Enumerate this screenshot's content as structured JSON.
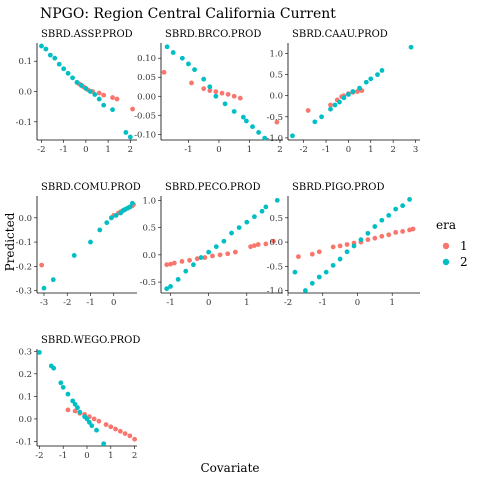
{
  "title": "NPGO: Region Central California Current",
  "xlabel": "Covariate",
  "ylabel": "Predicted",
  "legend": {
    "title": "era",
    "entries": [
      {
        "label": "1",
        "color": "#F8766D"
      },
      {
        "label": "2",
        "color": "#00BFC4"
      }
    ],
    "position": "right"
  },
  "chart_data": [
    {
      "type": "scatter",
      "title": "SBRD.ASSP.PROD",
      "xlim": [
        -2.2,
        2.3
      ],
      "ylim": [
        -0.16,
        0.16
      ],
      "xticks": [
        -2,
        -1,
        0,
        1,
        2
      ],
      "yticks": [
        0.1,
        0.0,
        -0.1
      ],
      "series": [
        {
          "name": "1",
          "color": "#F8766D",
          "points": [
            [
              -0.4,
              0.03
            ],
            [
              -0.3,
              0.025
            ],
            [
              -0.2,
              0.02
            ],
            [
              -0.1,
              0.015
            ],
            [
              0.0,
              0.01
            ],
            [
              0.1,
              0.005
            ],
            [
              0.3,
              0.0
            ],
            [
              0.6,
              -0.005
            ],
            [
              0.8,
              -0.012
            ],
            [
              1.2,
              -0.02
            ],
            [
              1.4,
              -0.025
            ],
            [
              2.1,
              -0.058
            ]
          ]
        },
        {
          "name": "2",
          "color": "#00BFC4",
          "points": [
            [
              -2.0,
              0.15
            ],
            [
              -1.8,
              0.14
            ],
            [
              -1.6,
              0.12
            ],
            [
              -1.4,
              0.11
            ],
            [
              -1.2,
              0.09
            ],
            [
              -1.0,
              0.075
            ],
            [
              -0.8,
              0.06
            ],
            [
              -0.6,
              0.045
            ],
            [
              -0.4,
              0.03
            ],
            [
              -0.2,
              0.02
            ],
            [
              0.0,
              0.01
            ],
            [
              0.2,
              0.0
            ],
            [
              0.4,
              -0.01
            ],
            [
              0.6,
              -0.025
            ],
            [
              0.8,
              -0.045
            ],
            [
              1.2,
              -0.06
            ],
            [
              1.8,
              -0.135
            ],
            [
              2.0,
              -0.15
            ]
          ]
        }
      ]
    },
    {
      "type": "scatter",
      "title": "SBRD.BRCO.PROD",
      "xlim": [
        -1.9,
        2.1
      ],
      "ylim": [
        -0.115,
        0.14
      ],
      "xticks": [
        -1,
        0,
        1,
        2
      ],
      "yticks": [
        0.1,
        0.05,
        0.0,
        -0.05,
        -0.1
      ],
      "series": [
        {
          "name": "1",
          "color": "#F8766D",
          "points": [
            [
              -1.8,
              0.063
            ],
            [
              -0.9,
              0.035
            ],
            [
              -0.5,
              0.02
            ],
            [
              -0.3,
              0.015
            ],
            [
              -0.1,
              0.012
            ],
            [
              0.1,
              0.008
            ],
            [
              0.3,
              0.005
            ],
            [
              0.5,
              0.0
            ],
            [
              0.7,
              -0.005
            ],
            [
              1.9,
              -0.068
            ]
          ]
        },
        {
          "name": "2",
          "color": "#00BFC4",
          "points": [
            [
              -1.7,
              0.13
            ],
            [
              -1.5,
              0.115
            ],
            [
              -1.2,
              0.1
            ],
            [
              -1.0,
              0.085
            ],
            [
              -0.8,
              0.07
            ],
            [
              -0.5,
              0.045
            ],
            [
              -0.3,
              0.025
            ],
            [
              -0.1,
              0.0
            ],
            [
              0.2,
              -0.02
            ],
            [
              0.5,
              -0.04
            ],
            [
              0.8,
              -0.055
            ],
            [
              0.9,
              -0.065
            ],
            [
              1.1,
              -0.08
            ],
            [
              1.3,
              -0.095
            ],
            [
              1.5,
              -0.11
            ]
          ]
        }
      ]
    },
    {
      "type": "scatter",
      "title": "SBRD.CAAU.PROD",
      "xlim": [
        -2.7,
        3.2
      ],
      "ylim": [
        -1.05,
        1.25
      ],
      "xticks": [
        -2,
        -1,
        0,
        1,
        2,
        3
      ],
      "yticks": [
        1.0,
        0.5,
        0.0,
        -0.5,
        -1.0
      ],
      "series": [
        {
          "name": "1",
          "color": "#F8766D",
          "points": [
            [
              -1.8,
              -0.35
            ],
            [
              -0.8,
              -0.22
            ],
            [
              -0.5,
              -0.1
            ],
            [
              -0.3,
              -0.02
            ],
            [
              -0.2,
              0.0
            ],
            [
              0.0,
              0.05
            ],
            [
              0.2,
              0.08
            ],
            [
              0.4,
              0.1
            ],
            [
              0.6,
              0.12
            ]
          ]
        },
        {
          "name": "2",
          "color": "#00BFC4",
          "points": [
            [
              -2.5,
              -0.95
            ],
            [
              -1.5,
              -0.62
            ],
            [
              -1.2,
              -0.5
            ],
            [
              -0.8,
              -0.32
            ],
            [
              -0.6,
              -0.22
            ],
            [
              -0.4,
              -0.15
            ],
            [
              -0.2,
              -0.05
            ],
            [
              0.0,
              0.03
            ],
            [
              0.2,
              0.1
            ],
            [
              0.5,
              0.18
            ],
            [
              0.8,
              0.32
            ],
            [
              1.0,
              0.4
            ],
            [
              1.3,
              0.5
            ],
            [
              1.5,
              0.6
            ],
            [
              2.8,
              1.15
            ]
          ]
        }
      ]
    },
    {
      "type": "scatter",
      "title": "SBRD.COMU.PROD",
      "xlim": [
        -3.3,
        1.0
      ],
      "ylim": [
        -0.31,
        0.09
      ],
      "xticks": [
        -3,
        -2,
        -1,
        0
      ],
      "yticks": [
        0.0,
        -0.1,
        -0.2,
        -0.3
      ],
      "series": [
        {
          "name": "1",
          "color": "#F8766D",
          "points": [
            [
              -3.1,
              -0.195
            ],
            [
              -0.1,
              0.0
            ],
            [
              0.0,
              0.01
            ],
            [
              0.2,
              0.02
            ],
            [
              0.3,
              0.025
            ],
            [
              0.4,
              0.03
            ],
            [
              0.5,
              0.035
            ],
            [
              0.6,
              0.04
            ],
            [
              0.7,
              0.045
            ],
            [
              0.8,
              0.05
            ],
            [
              0.85,
              0.055
            ]
          ]
        },
        {
          "name": "2",
          "color": "#00BFC4",
          "points": [
            [
              -3.0,
              -0.29
            ],
            [
              -2.6,
              -0.255
            ],
            [
              -1.7,
              -0.155
            ],
            [
              -1.0,
              -0.1
            ],
            [
              -0.6,
              -0.05
            ],
            [
              -0.3,
              -0.02
            ],
            [
              -0.1,
              0.0
            ],
            [
              0.1,
              0.01
            ],
            [
              0.3,
              0.02
            ],
            [
              0.4,
              0.03
            ],
            [
              0.5,
              0.035
            ],
            [
              0.6,
              0.04
            ],
            [
              0.7,
              0.045
            ],
            [
              0.8,
              0.06
            ]
          ]
        }
      ]
    },
    {
      "type": "scatter",
      "title": "SBRD.PECO.PROD",
      "xlim": [
        -1.25,
        1.95
      ],
      "ylim": [
        -0.7,
        1.08
      ],
      "xticks": [
        -1,
        0,
        1
      ],
      "yticks": [
        1.0,
        0.5,
        0.0,
        -0.5
      ],
      "series": [
        {
          "name": "1",
          "color": "#F8766D",
          "points": [
            [
              -1.1,
              -0.18
            ],
            [
              -1.0,
              -0.17
            ],
            [
              -0.9,
              -0.15
            ],
            [
              -0.7,
              -0.12
            ],
            [
              -0.5,
              -0.1
            ],
            [
              -0.3,
              -0.07
            ],
            [
              -0.1,
              -0.05
            ],
            [
              0.1,
              -0.02
            ],
            [
              0.3,
              0.0
            ],
            [
              0.5,
              0.02
            ],
            [
              0.7,
              0.05
            ],
            [
              1.1,
              0.15
            ],
            [
              1.2,
              0.17
            ],
            [
              1.3,
              0.19
            ],
            [
              1.5,
              0.2
            ],
            [
              1.7,
              0.25
            ]
          ]
        },
        {
          "name": "2",
          "color": "#00BFC4",
          "points": [
            [
              -1.1,
              -0.62
            ],
            [
              -1.0,
              -0.58
            ],
            [
              -0.8,
              -0.45
            ],
            [
              -0.6,
              -0.3
            ],
            [
              -0.4,
              -0.18
            ],
            [
              -0.2,
              -0.05
            ],
            [
              0.0,
              0.05
            ],
            [
              0.2,
              0.15
            ],
            [
              0.4,
              0.25
            ],
            [
              0.6,
              0.4
            ],
            [
              0.8,
              0.5
            ],
            [
              1.0,
              0.6
            ],
            [
              1.2,
              0.7
            ],
            [
              1.4,
              0.8
            ],
            [
              1.5,
              0.88
            ],
            [
              1.8,
              1.0
            ]
          ]
        }
      ]
    },
    {
      "type": "scatter",
      "title": "SBRD.PIGO.PROD",
      "xlim": [
        -2.0,
        1.8
      ],
      "ylim": [
        -1.05,
        0.95
      ],
      "xticks": [
        -2,
        -1,
        0,
        1
      ],
      "yticks": [
        0.5,
        0.0,
        -0.5,
        -1.0
      ],
      "series": [
        {
          "name": "1",
          "color": "#F8766D",
          "points": [
            [
              -1.7,
              -0.3
            ],
            [
              -1.3,
              -0.25
            ],
            [
              -1.1,
              -0.2
            ],
            [
              -0.7,
              -0.1
            ],
            [
              -0.5,
              -0.08
            ],
            [
              -0.3,
              -0.05
            ],
            [
              -0.1,
              -0.02
            ],
            [
              0.1,
              0.0
            ],
            [
              0.3,
              0.05
            ],
            [
              0.5,
              0.08
            ],
            [
              0.7,
              0.12
            ],
            [
              0.9,
              0.15
            ],
            [
              1.1,
              0.2
            ],
            [
              1.3,
              0.22
            ],
            [
              1.5,
              0.25
            ],
            [
              1.6,
              0.27
            ]
          ]
        },
        {
          "name": "2",
          "color": "#00BFC4",
          "points": [
            [
              -1.8,
              -0.62
            ],
            [
              -1.5,
              -1.0
            ],
            [
              -1.3,
              -0.85
            ],
            [
              -1.1,
              -0.72
            ],
            [
              -0.9,
              -0.62
            ],
            [
              -0.7,
              -0.48
            ],
            [
              -0.5,
              -0.35
            ],
            [
              -0.3,
              -0.2
            ],
            [
              -0.1,
              -0.08
            ],
            [
              0.1,
              0.05
            ],
            [
              0.3,
              0.18
            ],
            [
              0.5,
              0.32
            ],
            [
              0.7,
              0.45
            ],
            [
              0.9,
              0.55
            ],
            [
              1.1,
              0.68
            ],
            [
              1.3,
              0.75
            ],
            [
              1.5,
              0.88
            ]
          ]
        }
      ]
    },
    {
      "type": "scatter",
      "title": "SBRD.WEGO.PROD",
      "xlim": [
        -2.1,
        2.1
      ],
      "ylim": [
        -0.12,
        0.31
      ],
      "xticks": [
        -2,
        -1,
        0,
        1,
        2
      ],
      "yticks": [
        0.3,
        0.2,
        0.1,
        0.0,
        -0.1
      ],
      "series": [
        {
          "name": "1",
          "color": "#F8766D",
          "points": [
            [
              -0.8,
              0.04
            ],
            [
              -0.5,
              0.035
            ],
            [
              -0.3,
              0.025
            ],
            [
              -0.1,
              0.02
            ],
            [
              0.1,
              0.01
            ],
            [
              0.3,
              0.0
            ],
            [
              0.5,
              -0.01
            ],
            [
              0.8,
              -0.025
            ],
            [
              1.0,
              -0.035
            ],
            [
              1.2,
              -0.045
            ],
            [
              1.4,
              -0.055
            ],
            [
              1.6,
              -0.065
            ],
            [
              1.8,
              -0.075
            ],
            [
              2.0,
              -0.09
            ]
          ]
        },
        {
          "name": "2",
          "color": "#00BFC4",
          "points": [
            [
              -2.0,
              0.295
            ],
            [
              -1.5,
              0.235
            ],
            [
              -1.4,
              0.225
            ],
            [
              -1.1,
              0.16
            ],
            [
              -1.0,
              0.14
            ],
            [
              -0.8,
              0.11
            ],
            [
              -0.6,
              0.08
            ],
            [
              -0.5,
              0.065
            ],
            [
              -0.4,
              0.05
            ],
            [
              -0.3,
              0.03
            ],
            [
              -0.1,
              0.01
            ],
            [
              0.0,
              0.0
            ],
            [
              0.1,
              -0.015
            ],
            [
              0.2,
              -0.03
            ],
            [
              0.4,
              -0.05
            ],
            [
              0.7,
              -0.11
            ]
          ]
        }
      ]
    }
  ]
}
